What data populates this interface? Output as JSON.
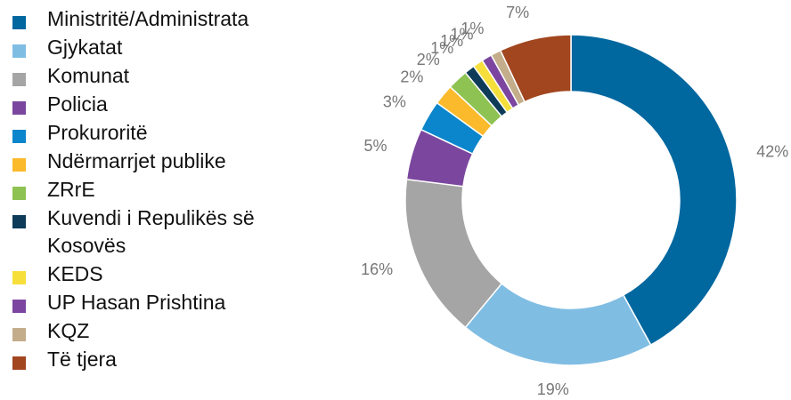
{
  "chart_data": {
    "type": "donut",
    "categories": [
      "Ministritë/Administrata",
      "Gjykatat",
      "Komunat",
      "Policia",
      "Prokuroritë",
      "Ndërmarrjet publike",
      "ZRrE",
      "Kuvendi i Repulikës së Kosovës",
      "KEDS",
      "UP Hasan Prishtina",
      "KQZ",
      "Të tjera"
    ],
    "values": [
      42,
      19,
      16,
      5,
      3,
      2,
      2,
      1,
      1,
      1,
      1,
      7
    ],
    "value_labels": [
      "42%",
      "19%",
      "16%",
      "5%",
      "3%",
      "2%",
      "2%",
      "1%",
      "1%",
      "1%",
      "1%",
      "7%"
    ],
    "colors": [
      "#00679f",
      "#80bde3",
      "#a5a5a5",
      "#7b479e",
      "#0b86cc",
      "#fbba2c",
      "#8ec252",
      "#0e3b58",
      "#f6df3b",
      "#7c46a0",
      "#c3ad8b",
      "#a1461f"
    ]
  }
}
